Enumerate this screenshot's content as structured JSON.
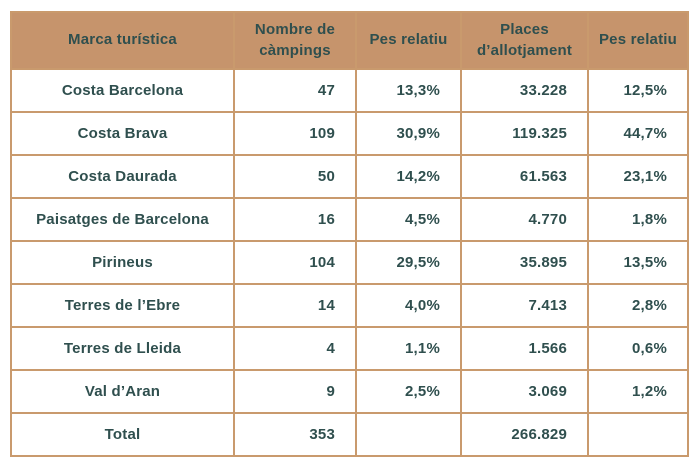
{
  "chart_data": {
    "type": "table",
    "columns": [
      "Marca turística",
      "Nombre de càmpings",
      "Pes relatiu",
      "Places d’allotjament",
      "Pes relatiu"
    ],
    "rows": [
      [
        "Costa Barcelona",
        "47",
        "13,3%",
        "33.228",
        "12,5%"
      ],
      [
        "Costa Brava",
        "109",
        "30,9%",
        "119.325",
        "44,7%"
      ],
      [
        "Costa Daurada",
        "50",
        "14,2%",
        "61.563",
        "23,1%"
      ],
      [
        "Paisatges de Barcelona",
        "16",
        "4,5%",
        "4.770",
        "1,8%"
      ],
      [
        "Pirineus",
        "104",
        "29,5%",
        "35.895",
        "13,5%"
      ],
      [
        "Terres de l’Ebre",
        "14",
        "4,0%",
        "7.413",
        "2,8%"
      ],
      [
        "Terres de Lleida",
        "4",
        "1,1%",
        "1.566",
        "0,6%"
      ],
      [
        "Val d’Aran",
        "9",
        "2,5%",
        "3.069",
        "1,2%"
      ]
    ],
    "total_row": [
      "Total",
      "353",
      "",
      "266.829",
      ""
    ]
  },
  "colors": {
    "header-bg": "#c6946c",
    "border": "#c99a6d",
    "text": "#2f4f4e",
    "cell-bg": "#ffffff",
    "page-bg": "#ffffff"
  }
}
